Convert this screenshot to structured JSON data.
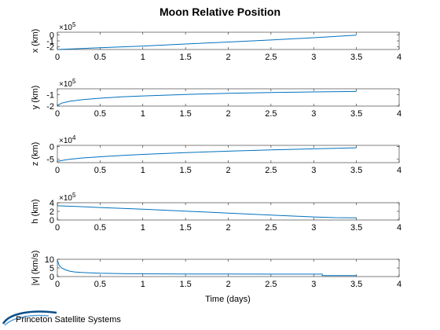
{
  "chart_data": {
    "type": "line",
    "title": "Moon Relative Position",
    "xlabel": "Time (days)",
    "xlim": [
      0,
      4
    ],
    "xticks": [
      "0",
      "0.5",
      "1",
      "1.5",
      "2",
      "2.5",
      "3",
      "3.5",
      "4"
    ],
    "line_color": "#0072BD",
    "grid": false,
    "subplots": [
      {
        "name": "x",
        "ylabel": "x (km)",
        "exponent_base": "×10",
        "exponent_power": "5",
        "ylim": [
          -2.5,
          0.5
        ],
        "yticks": [
          {
            "value": -2,
            "label": "-2"
          },
          {
            "value": -1,
            "label": "-1"
          },
          {
            "value": 0,
            "label": "0"
          }
        ],
        "x": [
          0,
          0.5,
          1,
          1.5,
          2,
          2.5,
          3,
          3.5
        ],
        "y": [
          -2.5,
          -2.2,
          -1.9,
          -1.55,
          -1.2,
          -0.85,
          -0.45,
          0.0
        ]
      },
      {
        "name": "y",
        "ylabel": "y (km)",
        "exponent_base": "×10",
        "exponent_power": "5",
        "ylim": [
          -2,
          -0.5
        ],
        "yticks": [
          {
            "value": -2,
            "label": "-2"
          },
          {
            "value": -1,
            "label": "-1"
          }
        ],
        "x": [
          0,
          0.05,
          0.15,
          0.3,
          0.5,
          0.75,
          1,
          1.5,
          2,
          2.5,
          3,
          3.5
        ],
        "y": [
          -1.95,
          -1.75,
          -1.58,
          -1.44,
          -1.32,
          -1.2,
          -1.12,
          -0.99,
          -0.89,
          -0.82,
          -0.77,
          -0.73
        ]
      },
      {
        "name": "z",
        "ylabel": "z (km)",
        "exponent_base": "×10",
        "exponent_power": "4",
        "ylim": [
          -6.5,
          0.5
        ],
        "yticks": [
          {
            "value": -5,
            "label": "-5"
          },
          {
            "value": 0,
            "label": "0"
          }
        ],
        "x": [
          0,
          0.05,
          0.15,
          0.3,
          0.5,
          0.75,
          1,
          1.5,
          2,
          2.5,
          3,
          3.5
        ],
        "y": [
          -6.0,
          -5.6,
          -5.1,
          -4.6,
          -4.1,
          -3.6,
          -3.15,
          -2.45,
          -1.85,
          -1.35,
          -0.9,
          -0.5
        ]
      },
      {
        "name": "h",
        "ylabel": "h (km)",
        "exponent_base": "×10",
        "exponent_power": "5",
        "ylim": [
          0,
          4
        ],
        "yticks": [
          {
            "value": 0,
            "label": "0"
          },
          {
            "value": 2,
            "label": "2"
          },
          {
            "value": 4,
            "label": "4"
          }
        ],
        "x": [
          0,
          0.25,
          0.5,
          1,
          1.5,
          2,
          2.5,
          3,
          3.25,
          3.5
        ],
        "y": [
          3.3,
          3.1,
          2.9,
          2.5,
          2.05,
          1.6,
          1.15,
          0.7,
          0.55,
          0.5
        ]
      },
      {
        "name": "v",
        "ylabel": "|v| (km/s)",
        "exponent_base": "",
        "exponent_power": "",
        "ylim": [
          0,
          10
        ],
        "yticks": [
          {
            "value": 0,
            "label": "0"
          },
          {
            "value": 5,
            "label": "5"
          },
          {
            "value": 10,
            "label": "10"
          }
        ],
        "x": [
          0,
          0.02,
          0.05,
          0.1,
          0.15,
          0.2,
          0.3,
          0.5,
          0.75,
          1,
          1.5,
          2,
          2.5,
          3,
          3.1,
          3.1,
          3.5
        ],
        "y": [
          9.5,
          6.5,
          5.0,
          3.8,
          3.1,
          2.7,
          2.3,
          1.9,
          1.7,
          1.6,
          1.5,
          1.45,
          1.4,
          1.4,
          1.4,
          0.6,
          0.6
        ]
      }
    ]
  },
  "logo": {
    "text": "Princeton Satellite Systems",
    "color": "#0b4f8a"
  }
}
